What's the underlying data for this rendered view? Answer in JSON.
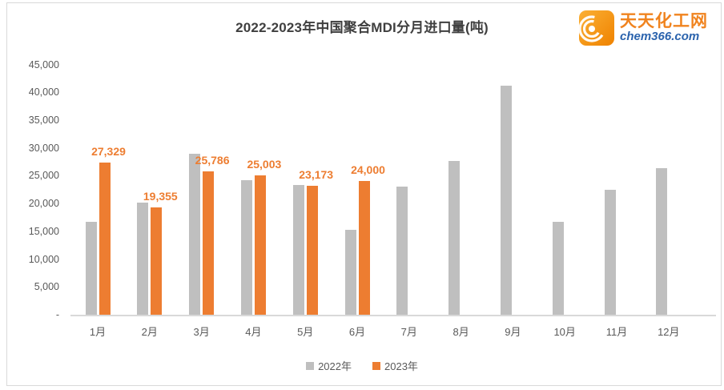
{
  "title": "2022-2023年中国聚合MDI分月进口量(吨)",
  "logo": {
    "name": "天天化工网",
    "site": "chem366.com",
    "icon_color": "#f59a00",
    "text_color": "#f0831e",
    "site_color": "#2b63ad"
  },
  "chart_data": {
    "type": "bar",
    "title": "2022-2023年中国聚合MDI分月进口量(吨)",
    "categories": [
      "1月",
      "2月",
      "3月",
      "4月",
      "5月",
      "6月",
      "7月",
      "8月",
      "9月",
      "10月",
      "11月",
      "12月"
    ],
    "series": [
      {
        "name": "2022年",
        "color": "#bfbfbf",
        "values": [
          16700,
          20200,
          28900,
          24200,
          23400,
          15300,
          23100,
          27700,
          41200,
          16700,
          22400,
          26400
        ],
        "values_note": "estimated from bar heights; not labeled in chart"
      },
      {
        "name": "2023年",
        "color": "#ed7d31",
        "values": [
          27329,
          19355,
          25786,
          25003,
          23173,
          24000,
          null,
          null,
          null,
          null,
          null,
          null
        ],
        "data_labels": [
          "27,329",
          "19,355",
          "25,786",
          "25,003",
          "23,173",
          "24,000"
        ]
      }
    ],
    "ylabel": "",
    "xlabel": "",
    "ylim": [
      0,
      45000
    ],
    "ytick_step": 5000,
    "ytick_labels": [
      "-",
      "5,000",
      "10,000",
      "15,000",
      "20,000",
      "25,000",
      "30,000",
      "35,000",
      "40,000",
      "45,000"
    ],
    "grid": false,
    "legend_position": "bottom",
    "data_label_color": "#ed7d31",
    "axis_text_color": "#595959",
    "axis_line_color": "#d9d9d9"
  }
}
